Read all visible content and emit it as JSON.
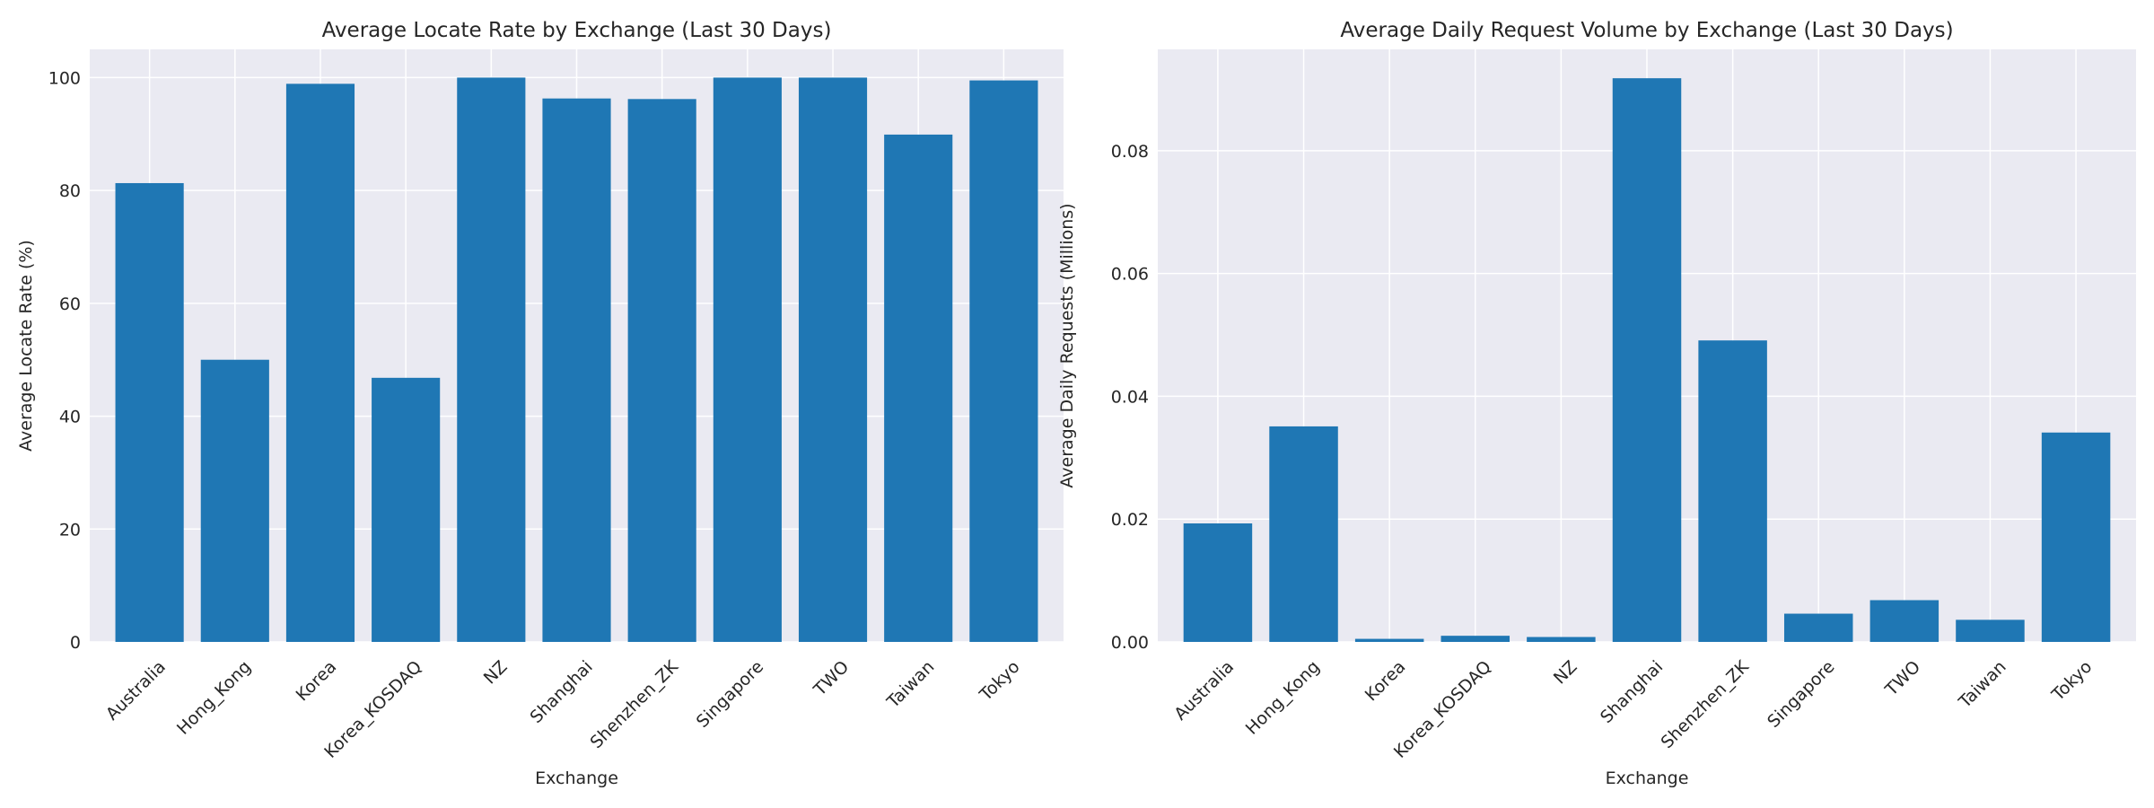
{
  "chart_data": [
    {
      "type": "bar",
      "title": "Average Locate Rate by Exchange (Last 30 Days)",
      "xlabel": "Exchange",
      "ylabel": "Average Locate Rate (%)",
      "categories": [
        "Australia",
        "Hong_Kong",
        "Korea",
        "Korea_KOSDAQ",
        "NZ",
        "Shanghai",
        "Shenzhen_ZK",
        "Singapore",
        "TWO",
        "Taiwan",
        "Tokyo"
      ],
      "values": [
        81.3,
        50.0,
        98.9,
        46.8,
        100.0,
        96.3,
        96.2,
        100.0,
        100.0,
        89.9,
        99.5
      ],
      "ylim": [
        0,
        105
      ],
      "yticks": [
        0,
        20,
        40,
        60,
        80,
        100
      ],
      "ytick_labels": [
        "0",
        "20",
        "40",
        "60",
        "80",
        "100"
      ],
      "grid": true,
      "color": "#1f77b4"
    },
    {
      "type": "bar",
      "title": "Average Daily Request Volume by Exchange (Last 30 Days)",
      "xlabel": "Exchange",
      "ylabel": "Average Daily Requests (Millions)",
      "categories": [
        "Australia",
        "Hong_Kong",
        "Korea",
        "Korea_KOSDAQ",
        "NZ",
        "Shanghai",
        "Shenzhen_ZK",
        "Singapore",
        "TWO",
        "Taiwan",
        "Tokyo"
      ],
      "values": [
        0.0193,
        0.0351,
        0.0005,
        0.001,
        0.0008,
        0.0918,
        0.0491,
        0.0046,
        0.0068,
        0.0036,
        0.0341
      ],
      "ylim": [
        0,
        0.0965
      ],
      "yticks": [
        0,
        0.02,
        0.04,
        0.06,
        0.08
      ],
      "ytick_labels": [
        "0.00",
        "0.02",
        "0.04",
        "0.06",
        "0.08"
      ],
      "grid": true,
      "color": "#1f77b4"
    }
  ]
}
